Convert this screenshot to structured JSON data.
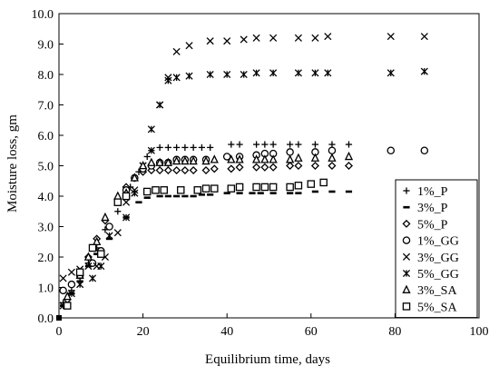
{
  "chart_data": {
    "type": "scatter",
    "xlabel": "Equilibrium time, days",
    "ylabel": "Moisture loss, gm",
    "xlim": [
      0,
      100
    ],
    "ylim": [
      0,
      10
    ],
    "x_ticks": [
      "0",
      "20",
      "40",
      "60",
      "80",
      "100"
    ],
    "y_ticks": [
      "0.0",
      "1.0",
      "2.0",
      "3.0",
      "4.0",
      "5.0",
      "6.0",
      "7.0",
      "8.0",
      "9.0",
      "10.0"
    ],
    "grid": false,
    "legend_position": "right",
    "series": [
      {
        "name": "1%_P",
        "marker": "plus",
        "points": [
          [
            0,
            0
          ],
          [
            1,
            0.5
          ],
          [
            3,
            0.9
          ],
          [
            5,
            1.3
          ],
          [
            7,
            1.8
          ],
          [
            9,
            2.3
          ],
          [
            11,
            2.9
          ],
          [
            14,
            3.5
          ],
          [
            17,
            4.3
          ],
          [
            19,
            4.8
          ],
          [
            21,
            5.3
          ],
          [
            22,
            5.5
          ],
          [
            24,
            5.6
          ],
          [
            26,
            5.6
          ],
          [
            28,
            5.6
          ],
          [
            30,
            5.6
          ],
          [
            32,
            5.6
          ],
          [
            34,
            5.6
          ],
          [
            36,
            5.6
          ],
          [
            41,
            5.7
          ],
          [
            43,
            5.7
          ],
          [
            47,
            5.7
          ],
          [
            49,
            5.7
          ],
          [
            51,
            5.7
          ],
          [
            55,
            5.7
          ],
          [
            57,
            5.7
          ],
          [
            61,
            5.7
          ],
          [
            65,
            5.7
          ],
          [
            69,
            5.7
          ]
        ]
      },
      {
        "name": "3%_P",
        "marker": "dash",
        "points": [
          [
            0,
            0
          ],
          [
            1,
            0.4
          ],
          [
            3,
            0.8
          ],
          [
            5,
            1.2
          ],
          [
            7,
            1.7
          ],
          [
            9,
            2.1
          ],
          [
            12,
            2.6
          ],
          [
            16,
            3.3
          ],
          [
            19,
            3.8
          ],
          [
            21,
            3.95
          ],
          [
            24,
            4.0
          ],
          [
            26,
            4.0
          ],
          [
            28,
            4.0
          ],
          [
            30,
            4.0
          ],
          [
            32,
            4.0
          ],
          [
            34,
            4.05
          ],
          [
            36,
            4.05
          ],
          [
            40,
            4.1
          ],
          [
            43,
            4.1
          ],
          [
            46,
            4.1
          ],
          [
            48,
            4.1
          ],
          [
            51,
            4.1
          ],
          [
            55,
            4.1
          ],
          [
            57,
            4.1
          ],
          [
            61,
            4.15
          ],
          [
            65,
            4.15
          ],
          [
            69,
            4.15
          ]
        ]
      },
      {
        "name": "5%_P",
        "marker": "diamond",
        "points": [
          [
            0,
            0
          ],
          [
            2,
            0.6
          ],
          [
            5,
            1.4
          ],
          [
            7,
            2.0
          ],
          [
            9,
            2.6
          ],
          [
            11,
            3.2
          ],
          [
            14,
            3.9
          ],
          [
            16,
            4.3
          ],
          [
            18,
            4.6
          ],
          [
            20,
            4.8
          ],
          [
            22,
            4.85
          ],
          [
            24,
            4.85
          ],
          [
            26,
            4.85
          ],
          [
            28,
            4.85
          ],
          [
            30,
            4.85
          ],
          [
            32,
            4.85
          ],
          [
            35,
            4.85
          ],
          [
            37,
            4.9
          ],
          [
            41,
            4.9
          ],
          [
            43,
            4.95
          ],
          [
            47,
            4.95
          ],
          [
            49,
            4.95
          ],
          [
            51,
            4.95
          ],
          [
            55,
            5.0
          ],
          [
            57,
            5.0
          ],
          [
            61,
            5.0
          ],
          [
            65,
            5.0
          ],
          [
            69,
            5.0
          ]
        ]
      },
      {
        "name": "1%_GG",
        "marker": "circle",
        "points": [
          [
            0,
            0
          ],
          [
            1,
            0.9
          ],
          [
            3,
            1.1
          ],
          [
            5,
            1.4
          ],
          [
            8,
            1.8
          ],
          [
            10,
            2.2
          ],
          [
            12,
            3.0
          ],
          [
            16,
            4.2
          ],
          [
            18,
            4.6
          ],
          [
            20,
            4.9
          ],
          [
            22,
            5.0
          ],
          [
            24,
            5.1
          ],
          [
            26,
            5.1
          ],
          [
            28,
            5.2
          ],
          [
            30,
            5.2
          ],
          [
            32,
            5.2
          ],
          [
            35,
            5.2
          ],
          [
            40,
            5.3
          ],
          [
            43,
            5.3
          ],
          [
            47,
            5.35
          ],
          [
            49,
            5.4
          ],
          [
            51,
            5.4
          ],
          [
            55,
            5.45
          ],
          [
            61,
            5.45
          ],
          [
            65,
            5.5
          ],
          [
            79,
            5.5
          ],
          [
            87,
            5.5
          ]
        ]
      },
      {
        "name": "3%_GG",
        "marker": "cross",
        "points": [
          [
            0,
            0
          ],
          [
            1,
            1.3
          ],
          [
            3,
            1.5
          ],
          [
            5,
            1.6
          ],
          [
            7,
            1.7
          ],
          [
            9,
            1.7
          ],
          [
            11,
            2.0
          ],
          [
            14,
            2.8
          ],
          [
            16,
            3.8
          ],
          [
            18,
            4.2
          ],
          [
            20,
            5.0
          ],
          [
            22,
            5.5
          ],
          [
            24,
            7.0
          ],
          [
            26,
            7.9
          ],
          [
            28,
            8.75
          ],
          [
            31,
            8.95
          ],
          [
            36,
            9.1
          ],
          [
            40,
            9.1
          ],
          [
            44,
            9.15
          ],
          [
            47,
            9.2
          ],
          [
            51,
            9.2
          ],
          [
            57,
            9.2
          ],
          [
            61,
            9.2
          ],
          [
            64,
            9.25
          ],
          [
            79,
            9.25
          ],
          [
            87,
            9.25
          ]
        ]
      },
      {
        "name": "5%_GG",
        "marker": "asterisk",
        "points": [
          [
            0,
            0
          ],
          [
            1,
            0.4
          ],
          [
            3,
            0.8
          ],
          [
            5,
            1.1
          ],
          [
            8,
            1.3
          ],
          [
            10,
            1.7
          ],
          [
            12,
            2.7
          ],
          [
            16,
            3.3
          ],
          [
            18,
            4.1
          ],
          [
            20,
            5.0
          ],
          [
            22,
            6.2
          ],
          [
            24,
            7.0
          ],
          [
            26,
            7.8
          ],
          [
            28,
            7.9
          ],
          [
            31,
            7.95
          ],
          [
            36,
            8.0
          ],
          [
            40,
            8.0
          ],
          [
            44,
            8.0
          ],
          [
            47,
            8.05
          ],
          [
            51,
            8.05
          ],
          [
            57,
            8.05
          ],
          [
            61,
            8.05
          ],
          [
            64,
            8.05
          ],
          [
            79,
            8.05
          ],
          [
            87,
            8.1
          ]
        ]
      },
      {
        "name": "3%_SA",
        "marker": "triangle",
        "points": [
          [
            0,
            0
          ],
          [
            2,
            0.7
          ],
          [
            5,
            1.4
          ],
          [
            7,
            2.0
          ],
          [
            9,
            2.5
          ],
          [
            11,
            3.3
          ],
          [
            14,
            4.0
          ],
          [
            16,
            4.1
          ],
          [
            18,
            4.6
          ],
          [
            20,
            5.0
          ],
          [
            22,
            5.1
          ],
          [
            24,
            5.1
          ],
          [
            26,
            5.1
          ],
          [
            28,
            5.15
          ],
          [
            30,
            5.15
          ],
          [
            32,
            5.15
          ],
          [
            35,
            5.15
          ],
          [
            37,
            5.2
          ],
          [
            41,
            5.2
          ],
          [
            43,
            5.2
          ],
          [
            47,
            5.2
          ],
          [
            49,
            5.2
          ],
          [
            51,
            5.2
          ],
          [
            55,
            5.2
          ],
          [
            57,
            5.25
          ],
          [
            61,
            5.25
          ],
          [
            65,
            5.25
          ],
          [
            69,
            5.3
          ]
        ]
      },
      {
        "name": "5%_SA",
        "marker": "square",
        "points": [
          [
            0,
            0
          ],
          [
            2,
            0.4
          ],
          [
            5,
            1.5
          ],
          [
            8,
            2.3
          ],
          [
            10,
            2.1
          ],
          [
            14,
            3.8
          ],
          [
            16,
            4.0
          ],
          [
            21,
            4.15
          ],
          [
            23,
            4.2
          ],
          [
            25,
            4.2
          ],
          [
            29,
            4.2
          ],
          [
            33,
            4.2
          ],
          [
            35,
            4.25
          ],
          [
            37,
            4.25
          ],
          [
            41,
            4.25
          ],
          [
            43,
            4.3
          ],
          [
            47,
            4.3
          ],
          [
            49,
            4.3
          ],
          [
            51,
            4.3
          ],
          [
            55,
            4.3
          ],
          [
            57,
            4.35
          ],
          [
            60,
            4.4
          ],
          [
            63,
            4.45
          ]
        ]
      }
    ]
  }
}
